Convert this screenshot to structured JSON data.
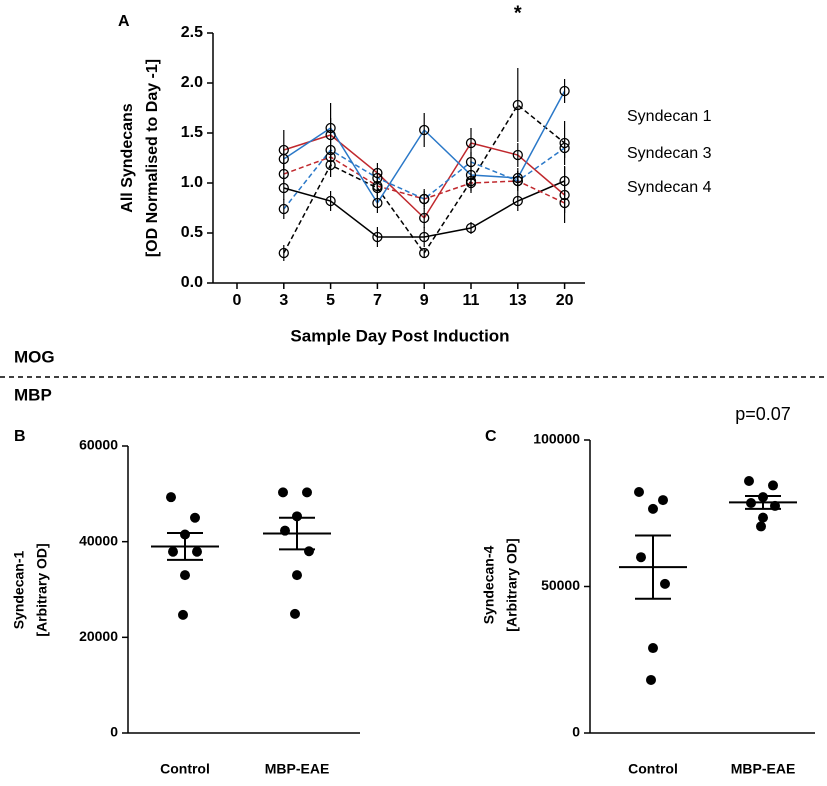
{
  "divider": {
    "top_label": "MOG",
    "bottom_label": "MBP"
  },
  "chart_data": [
    {
      "type": "line",
      "panel": "A",
      "ylabel": [
        "All Syndecans",
        "[OD Normalised to Day -1]"
      ],
      "xlabel": "Sample Day Post Induction",
      "categories": [
        "0",
        "3",
        "5",
        "7",
        "9",
        "11",
        "13",
        "20"
      ],
      "ylim": [
        0,
        2.5
      ],
      "yticks": [
        0.0,
        0.5,
        1.0,
        1.5,
        2.0,
        2.5
      ],
      "yticks_labels": [
        "0.0",
        "0.5",
        "1.0",
        "1.5",
        "2.0",
        "2.5"
      ],
      "legend": "right",
      "annotations": [
        {
          "text": "*",
          "x": "13"
        }
      ],
      "series": [
        {
          "name": "Syndecan 1",
          "color": "#000000",
          "lines": [
            {
              "style": "solid",
              "values": [
                null,
                0.95,
                0.82,
                0.46,
                0.46,
                0.55,
                0.82,
                1.02
              ],
              "errors": [
                null,
                0.12,
                0.1,
                0.1,
                0.1,
                0.06,
                0.1,
                0.15
              ]
            },
            {
              "style": "dashed",
              "values": [
                null,
                0.3,
                1.18,
                0.95,
                0.3,
                1.02,
                1.78,
                1.4
              ],
              "errors": [
                null,
                0.08,
                0.12,
                0.1,
                0.05,
                0.1,
                0.37,
                0.22
              ]
            }
          ]
        },
        {
          "name": "Syndecan 3",
          "color": "#c0282d",
          "lines": [
            {
              "style": "solid",
              "values": [
                null,
                1.33,
                1.48,
                1.1,
                0.65,
                1.4,
                1.28,
                0.88
              ],
              "errors": [
                null,
                0.2,
                0.32,
                0.1,
                0.1,
                0.15,
                0.12,
                0.28
              ]
            },
            {
              "style": "dashed",
              "values": [
                null,
                1.09,
                1.26,
                0.97,
                0.84,
                1.0,
                1.02,
                0.8
              ],
              "errors": [
                null,
                0.1,
                0.1,
                0.1,
                0.08,
                0.1,
                0.1,
                0.1
              ]
            }
          ]
        },
        {
          "name": "Syndecan 4",
          "color": "#2a78c8",
          "lines": [
            {
              "style": "solid",
              "values": [
                null,
                1.24,
                1.55,
                0.8,
                1.53,
                1.08,
                1.05,
                1.92
              ],
              "errors": [
                null,
                0.12,
                0.1,
                0.1,
                0.17,
                0.12,
                0.1,
                0.12
              ]
            },
            {
              "style": "dashed",
              "values": [
                null,
                0.74,
                1.33,
                1.05,
                0.84,
                1.21,
                1.02,
                1.35
              ],
              "errors": [
                null,
                0.1,
                0.1,
                0.1,
                0.1,
                0.1,
                0.1,
                0.1
              ]
            }
          ]
        }
      ]
    },
    {
      "type": "dotplot",
      "panel": "B",
      "ylabel": [
        "Syndecan-1",
        "[Arbitrary OD]"
      ],
      "categories": [
        "Control",
        "MBP-EAE"
      ],
      "ylim": [
        0,
        60000
      ],
      "yticks": [
        0,
        20000,
        40000,
        60000
      ],
      "color": "#000000",
      "annotations": [],
      "groups": [
        {
          "values": [
            49300,
            45000,
            41500,
            37900,
            37900,
            33000,
            24700
          ],
          "mean": 39000,
          "sem": 2800
        },
        {
          "values": [
            50300,
            50300,
            45300,
            42300,
            38000,
            33000,
            24900
          ],
          "mean": 41700,
          "sem": 3300
        }
      ]
    },
    {
      "type": "dotplot",
      "panel": "C",
      "ylabel": [
        "Syndecan-4",
        "[Arbitrary OD]"
      ],
      "categories": [
        "Control",
        "MBP-EAE"
      ],
      "ylim": [
        0,
        100000
      ],
      "yticks": [
        0,
        50000,
        100000
      ],
      "color": "#000000",
      "annotations": [
        {
          "text": "p=0.07",
          "x": "MBP-EAE"
        }
      ],
      "groups": [
        {
          "values": [
            82250,
            79500,
            76500,
            60000,
            50900,
            29000,
            18100
          ],
          "mean": 56600,
          "sem": 10800
        },
        {
          "values": [
            86000,
            84500,
            80500,
            78500,
            77500,
            73500,
            70500
          ],
          "mean": 78700,
          "sem": 2200
        }
      ]
    }
  ]
}
